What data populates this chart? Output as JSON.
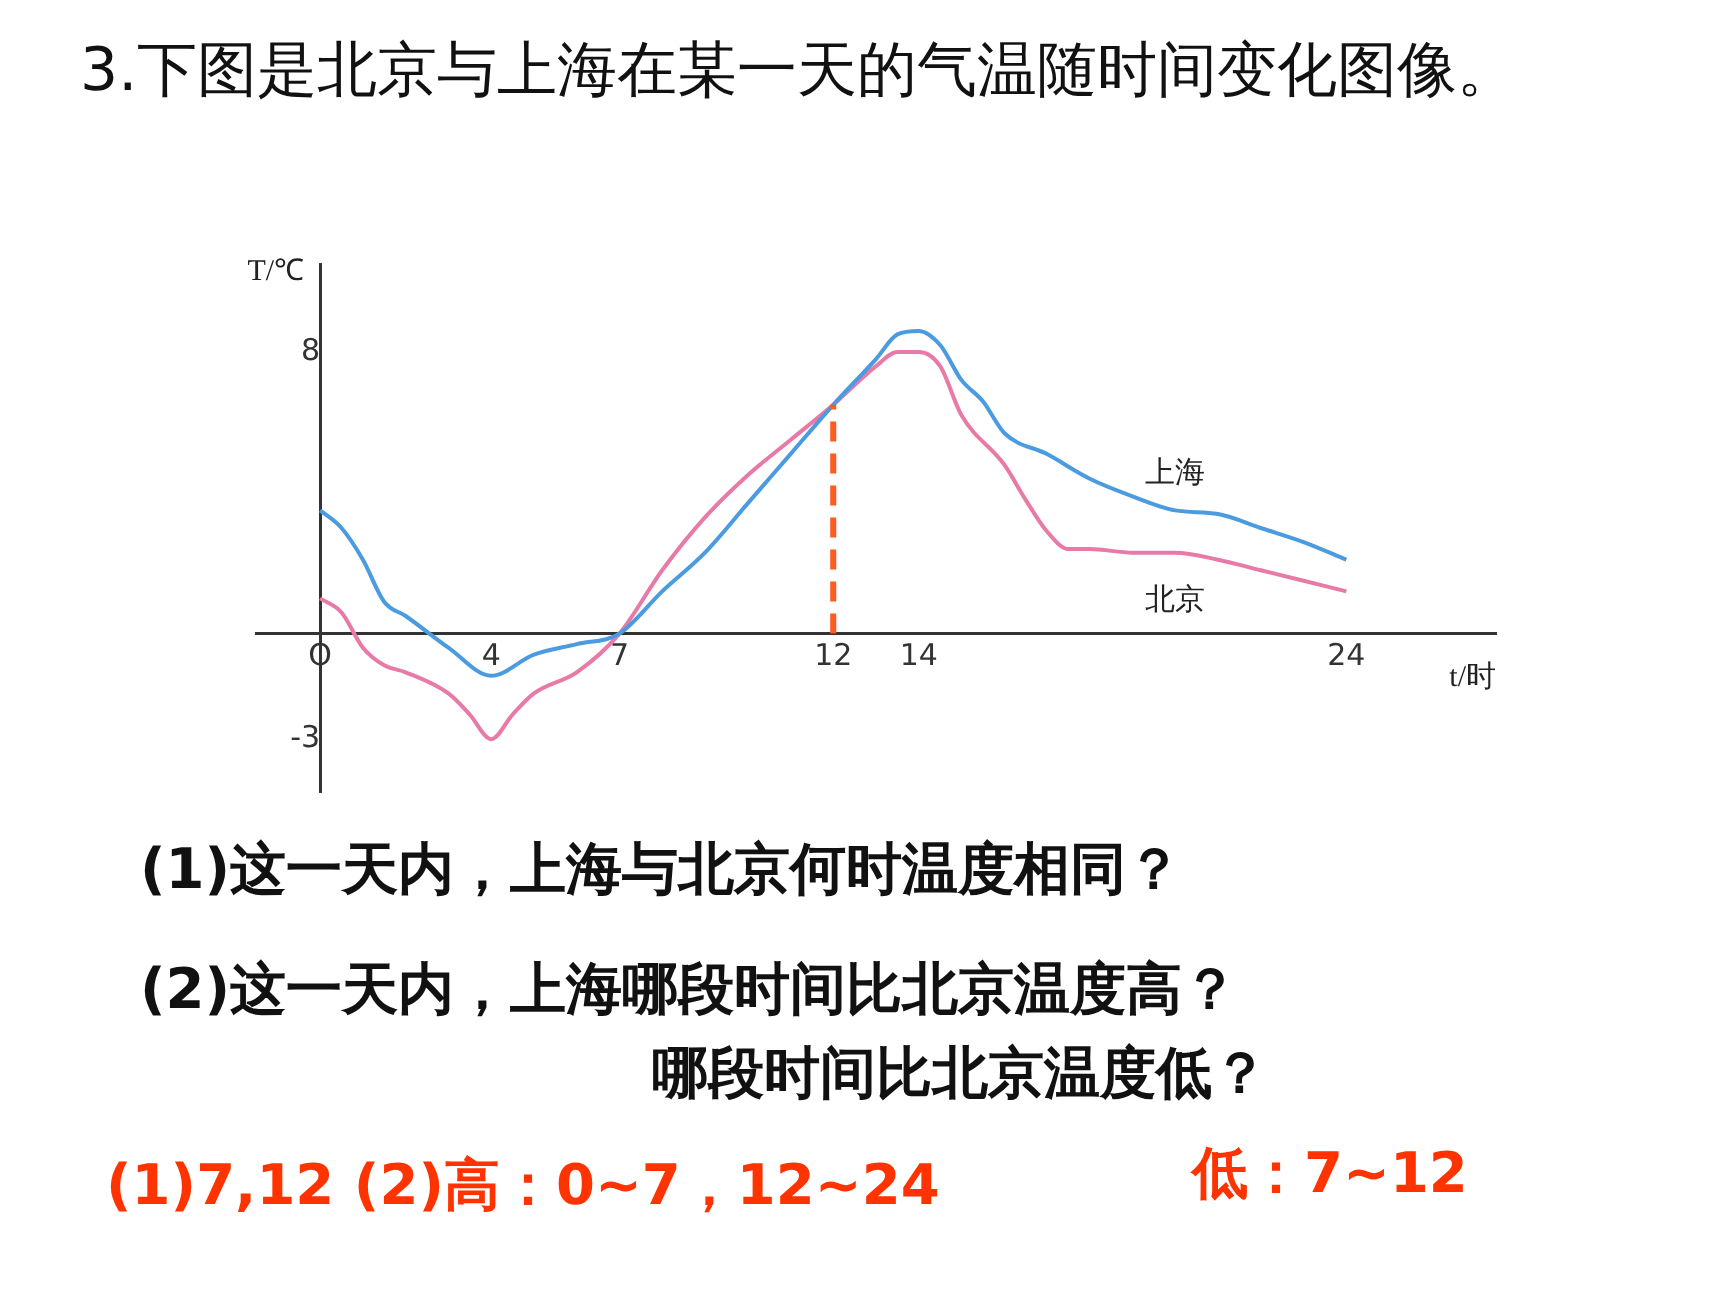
{
  "chart_data": {
    "type": "line",
    "title": "3.下图是北京与上海在某一天的气温随时间变化图像。",
    "xlabel": "t/时",
    "ylabel": "T/℃",
    "xlim": [
      -1.5,
      27.5
    ],
    "ylim": [
      -4.5,
      10.5
    ],
    "xticks": [
      {
        "value": 0,
        "label": "O"
      },
      4,
      7,
      12,
      14,
      24
    ],
    "yticks": [
      -3,
      8
    ],
    "grid": false,
    "legend": false,
    "marker": "none",
    "line_style": "solid",
    "series": [
      {
        "name": "上海",
        "color": "#4a9be0",
        "x": [
          0,
          0.5,
          1,
          1.5,
          2,
          3,
          4,
          5,
          6,
          7,
          8,
          9,
          10,
          11,
          12,
          13,
          13.5,
          14,
          14.5,
          15,
          15.5,
          16,
          17,
          18,
          19,
          20,
          21,
          22,
          23,
          24
        ],
        "values": [
          3.5,
          3.0,
          2.1,
          0.9,
          0.5,
          -0.4,
          -1.2,
          -0.6,
          -0.3,
          0,
          1.2,
          2.3,
          3.7,
          5.1,
          6.5,
          7.8,
          8.5,
          8.6,
          8.2,
          7.2,
          6.6,
          5.7,
          5.1,
          4.4,
          3.9,
          3.5,
          3.4,
          3.0,
          2.6,
          2.1
        ]
      },
      {
        "name": "北京",
        "color": "#e87aa8",
        "x": [
          0,
          0.5,
          1,
          1.5,
          2,
          3,
          3.5,
          4,
          4.5,
          5,
          6,
          7,
          8,
          9,
          10,
          11,
          12,
          13,
          13.5,
          14,
          14.5,
          15,
          16,
          16.5,
          17,
          17.5,
          18,
          19,
          20,
          21,
          22,
          23,
          24
        ],
        "values": [
          1.0,
          0.6,
          -0.4,
          -0.9,
          -1.1,
          -1.7,
          -2.3,
          -3.0,
          -2.3,
          -1.7,
          -1.1,
          0,
          1.8,
          3.3,
          4.5,
          5.5,
          6.5,
          7.6,
          8.0,
          8.0,
          7.6,
          6.2,
          4.8,
          3.8,
          2.9,
          2.4,
          2.4,
          2.3,
          2.3,
          2.1,
          1.8,
          1.5,
          1.2
        ]
      }
    ],
    "ref_lines": [
      {
        "axis": "x",
        "value": 12,
        "color": "#ff5a1f",
        "line_style": "dashed"
      }
    ],
    "annotations": [
      "(1)这一天内，上海与北京何时温度相同？",
      "(2)这一天内，上海哪段时间比北京温度高？",
      "哪段时间比北京温度低？",
      "(1)7,12 (2)高：0~7，12~24",
      "低：7~12"
    ]
  }
}
